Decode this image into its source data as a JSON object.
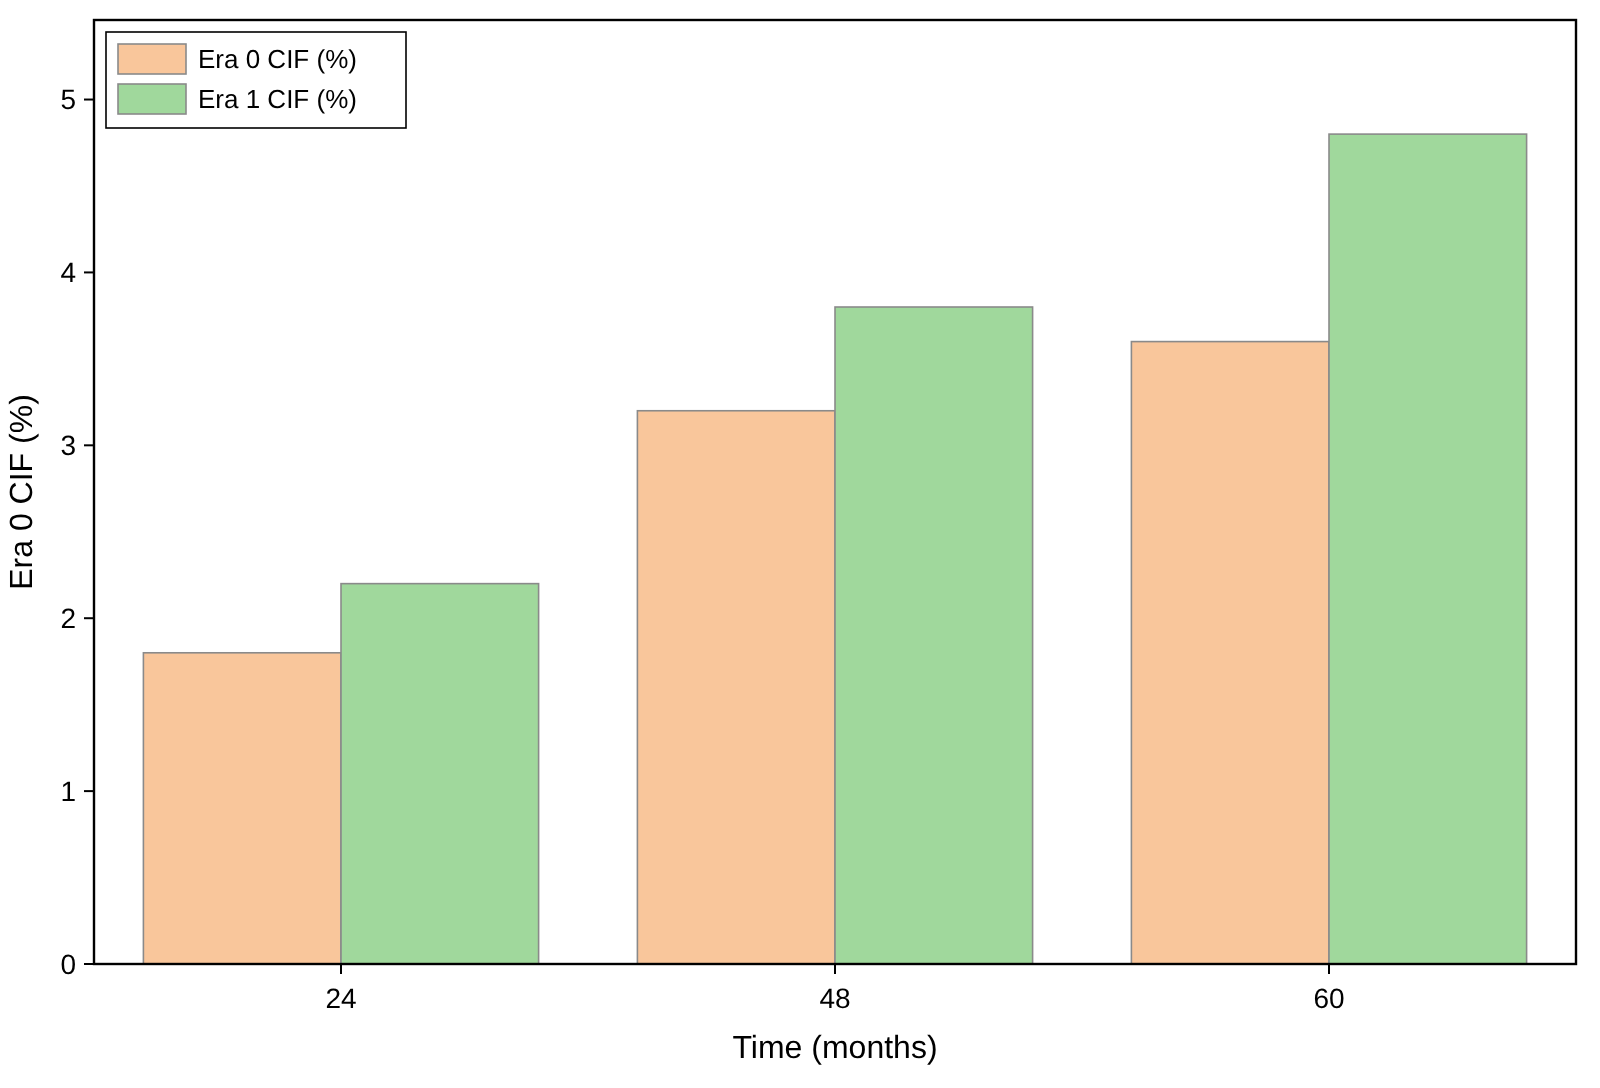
{
  "chart_data": {
    "type": "bar",
    "xlabel": "Time (months)",
    "ylabel": "Era 0 CIF (%)",
    "categories": [
      "24",
      "48",
      "60"
    ],
    "series": [
      {
        "name": "Era 0 CIF (%)",
        "color": "#f9c69b",
        "values": [
          1.8,
          3.2,
          3.6
        ]
      },
      {
        "name": "Era 1 CIF (%)",
        "color": "#a0d89c",
        "values": [
          2.2,
          3.8,
          4.8
        ]
      }
    ],
    "ylim": [
      0,
      5.46
    ],
    "yticks": [
      0,
      1,
      2,
      3,
      4,
      5
    ],
    "grid": false,
    "legend": "top left"
  }
}
